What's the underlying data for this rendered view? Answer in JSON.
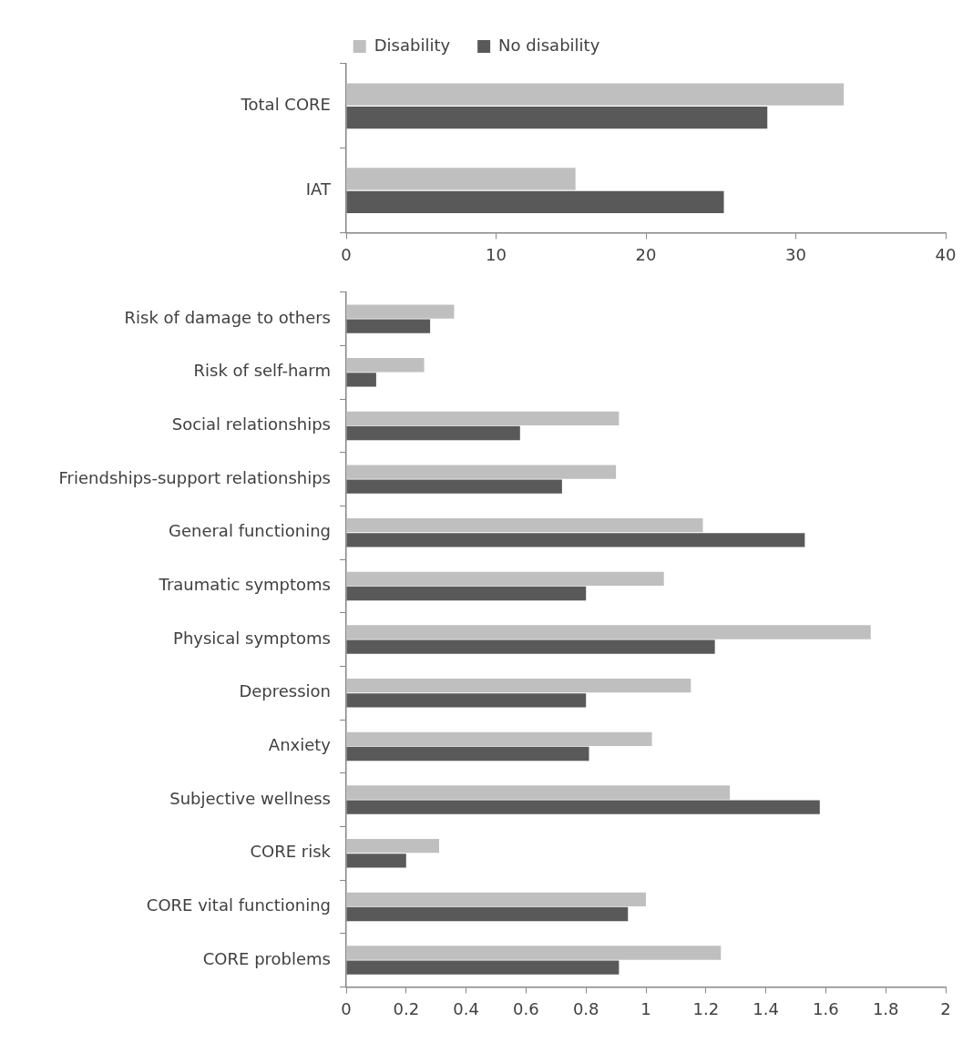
{
  "chart_data": [
    {
      "type": "bar",
      "orientation": "horizontal",
      "categories": [
        "Total CORE",
        "IAT"
      ],
      "series": [
        {
          "name": "Disability",
          "color": "#bfbfbf",
          "values": [
            33.2,
            15.3
          ]
        },
        {
          "name": "No disability",
          "color": "#595959",
          "values": [
            28.1,
            25.2
          ]
        }
      ],
      "xlim": [
        0,
        40
      ],
      "xticks": [
        0,
        10,
        20,
        30,
        40
      ],
      "grid": false,
      "legend": "top"
    },
    {
      "type": "bar",
      "orientation": "horizontal",
      "categories": [
        "Risk of damage to others",
        "Risk of self-harm",
        "Social relationships",
        "Friendships-support relationships",
        "General functioning",
        "Traumatic symptoms",
        "Physical symptoms",
        "Depression",
        "Anxiety",
        "Subjective wellness",
        "CORE risk",
        "CORE vital functioning",
        "CORE problems"
      ],
      "series": [
        {
          "color": "#bfbfbf",
          "values": [
            0.36,
            0.26,
            0.91,
            0.9,
            1.19,
            1.06,
            1.75,
            1.15,
            1.02,
            1.28,
            0.31,
            1.0,
            1.25
          ]
        },
        {
          "color": "#595959",
          "values": [
            0.28,
            0.1,
            0.58,
            0.72,
            1.53,
            0.8,
            1.23,
            0.8,
            0.81,
            1.58,
            0.2,
            0.94,
            0.91
          ]
        }
      ],
      "xlim": [
        0,
        2
      ],
      "xticks": [
        0,
        0.2,
        0.4,
        0.6,
        0.8,
        1,
        1.2,
        1.4,
        1.6,
        1.8,
        2
      ],
      "grid": false,
      "legend": false
    }
  ]
}
